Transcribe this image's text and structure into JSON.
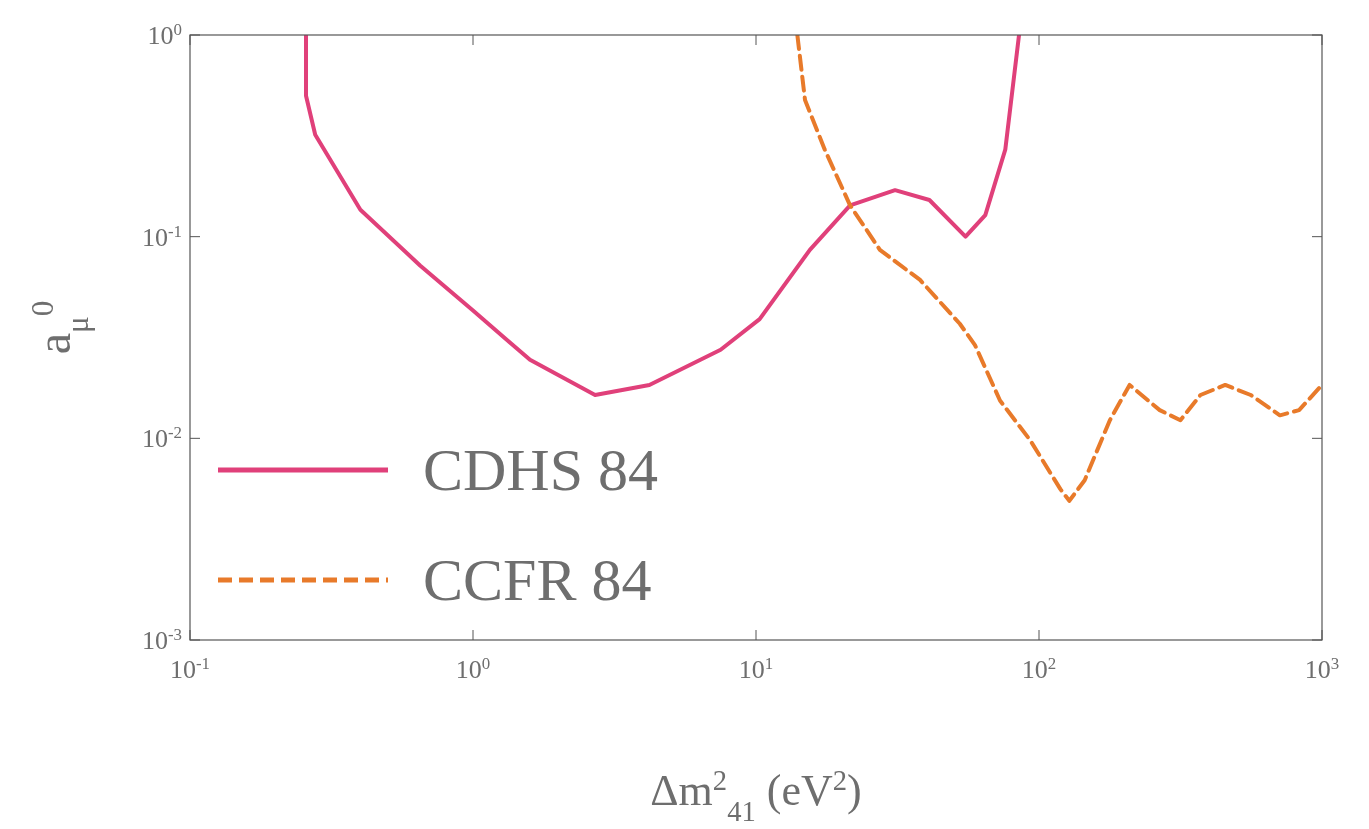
{
  "chart_data": {
    "type": "line",
    "xlabel": "Δm$^{2}$$_{41}$ (eV$^{2}$)",
    "ylabel": "a$_{μ}$$^{0}$",
    "log": "xy",
    "grid": false,
    "legend": "bottom left",
    "xlim": [
      0.1,
      1000
    ],
    "ylim": [
      0.001,
      1
    ],
    "xticks": [
      {
        "value": 0.1,
        "label": "10$^{-1}$"
      },
      {
        "value": 1,
        "label": "10$^{0}$"
      },
      {
        "value": 10,
        "label": "10$^{1}$"
      },
      {
        "value": 100,
        "label": "10$^{2}$"
      },
      {
        "value": 1000,
        "label": "10$^{3}$"
      }
    ],
    "yticks": [
      {
        "value": 0.001,
        "label": "10$^{-3}$"
      },
      {
        "value": 0.01,
        "label": "10$^{-2}$"
      },
      {
        "value": 0.1,
        "label": "10$^{-1}$"
      },
      {
        "value": 1,
        "label": "10$^{0}$"
      }
    ],
    "series": [
      {
        "name": "CDHS 84",
        "color": "#e0407a",
        "line_style": "solid",
        "x": [
          0.257,
          0.257,
          0.277,
          0.4,
          0.65,
          1.0,
          1.59,
          2.7,
          4.2,
          7.5,
          10.3,
          15.5,
          21.5,
          31,
          41,
          55,
          64.6,
          76,
          85
        ],
        "values": [
          1,
          0.5,
          0.32,
          0.136,
          0.072,
          0.043,
          0.0245,
          0.0164,
          0.0184,
          0.0275,
          0.039,
          0.086,
          0.143,
          0.17,
          0.152,
          0.1,
          0.128,
          0.27,
          1
        ]
      },
      {
        "name": "CCFR 84",
        "color": "#e87a2a",
        "line_style": "dashed",
        "x": [
          14,
          14.9,
          17.5,
          21.5,
          27.4,
          38,
          52.5,
          59.4,
          72.8,
          93,
          119,
          128,
          145,
          178,
          209,
          267,
          316,
          372,
          455,
          560,
          710,
          830,
          1000
        ],
        "values": [
          1,
          0.476,
          0.27,
          0.143,
          0.086,
          0.061,
          0.037,
          0.029,
          0.0154,
          0.0098,
          0.0056,
          0.0049,
          0.0062,
          0.0123,
          0.0184,
          0.0138,
          0.0123,
          0.0164,
          0.0184,
          0.0164,
          0.013,
          0.0138,
          0.0184
        ]
      }
    ]
  }
}
